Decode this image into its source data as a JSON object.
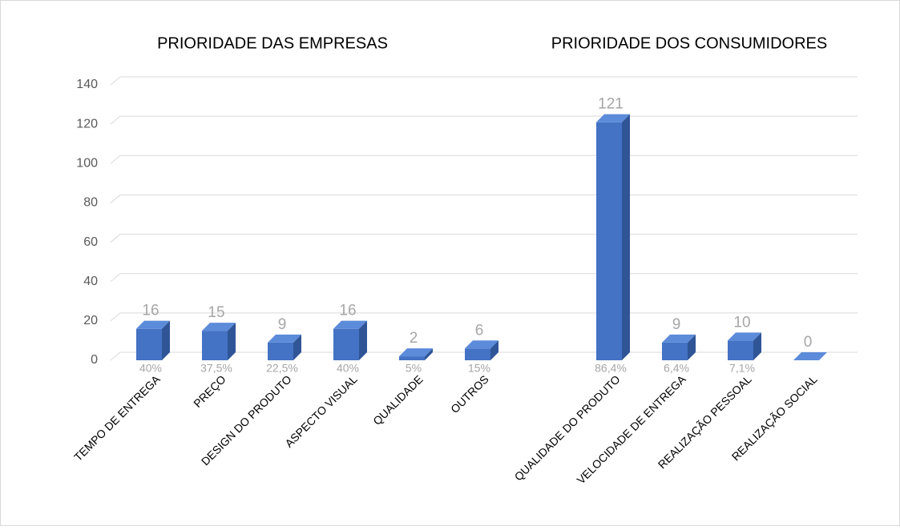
{
  "chart_data": {
    "type": "bar3d",
    "titles": [
      "PRIORIDADE DAS EMPRESAS",
      "PRIORIDADE DOS CONSUMIDORES"
    ],
    "categories": [
      "TEMPO DE ENTREGA",
      "PREÇO",
      "DESIGN DO PRODUTO",
      "ASPECTO VISUAL",
      "QUALIDADE",
      "OUTROS",
      null,
      "QUALIDADE DO PRODUTO",
      "VELOCIDADE DE ENTREGA",
      "REALIZAÇÃO PESSOAL",
      "REALIZAÇÃO SOCIAL"
    ],
    "values": [
      16,
      15,
      9,
      16,
      2,
      6,
      null,
      121,
      9,
      10,
      0
    ],
    "share_labels": [
      "40%",
      "37,5%",
      "22,5%",
      "40%",
      "5%",
      "15%",
      null,
      "86,4%",
      "6,4%",
      "7,1%",
      null
    ],
    "color": "#4472c4",
    "ylim": [
      0,
      140
    ],
    "yticks": [
      0,
      20,
      40,
      60,
      80,
      100,
      120,
      140
    ],
    "grid": true
  }
}
